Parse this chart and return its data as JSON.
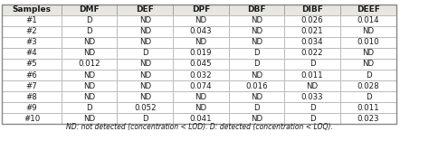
{
  "columns": [
    "Samples",
    "DMF",
    "DEF",
    "DPF",
    "DBF",
    "DIBF",
    "DEEF"
  ],
  "rows": [
    [
      "#1",
      "D",
      "ND",
      "ND",
      "ND",
      "0.026",
      "0.014"
    ],
    [
      "#2",
      "D",
      "ND",
      "0.043",
      "ND",
      "0.021",
      "ND"
    ],
    [
      "#3",
      "ND",
      "ND",
      "ND",
      "ND",
      "0.034",
      "0.010"
    ],
    [
      "#4",
      "ND",
      "D",
      "0.019",
      "D",
      "0.022",
      "ND"
    ],
    [
      "#5",
      "0.012",
      "ND",
      "0.045",
      "D",
      "D",
      "ND"
    ],
    [
      "#6",
      "ND",
      "ND",
      "0.032",
      "ND",
      "0.011",
      "D"
    ],
    [
      "#7",
      "ND",
      "ND",
      "0.074",
      "0.016",
      "ND",
      "0.028"
    ],
    [
      "#8",
      "ND",
      "ND",
      "ND",
      "ND",
      "0.033",
      "D"
    ],
    [
      "#9",
      "D",
      "0.052",
      "ND",
      "D",
      "D",
      "0.011"
    ],
    [
      "#10",
      "ND",
      "D",
      "0.041",
      "ND",
      "D",
      "0.023"
    ]
  ],
  "footer": "ND: not detected (concentration < LOD). D: detected (concentration < LOQ).",
  "header_bg": "#e8e6e0",
  "row_bg": "#ffffff",
  "text_color": "#1a1a1a",
  "border_color": "#888888",
  "header_fontsize": 6.5,
  "cell_fontsize": 6.2,
  "footer_fontsize": 5.5,
  "figsize": [
    4.74,
    1.56
  ],
  "dpi": 100
}
